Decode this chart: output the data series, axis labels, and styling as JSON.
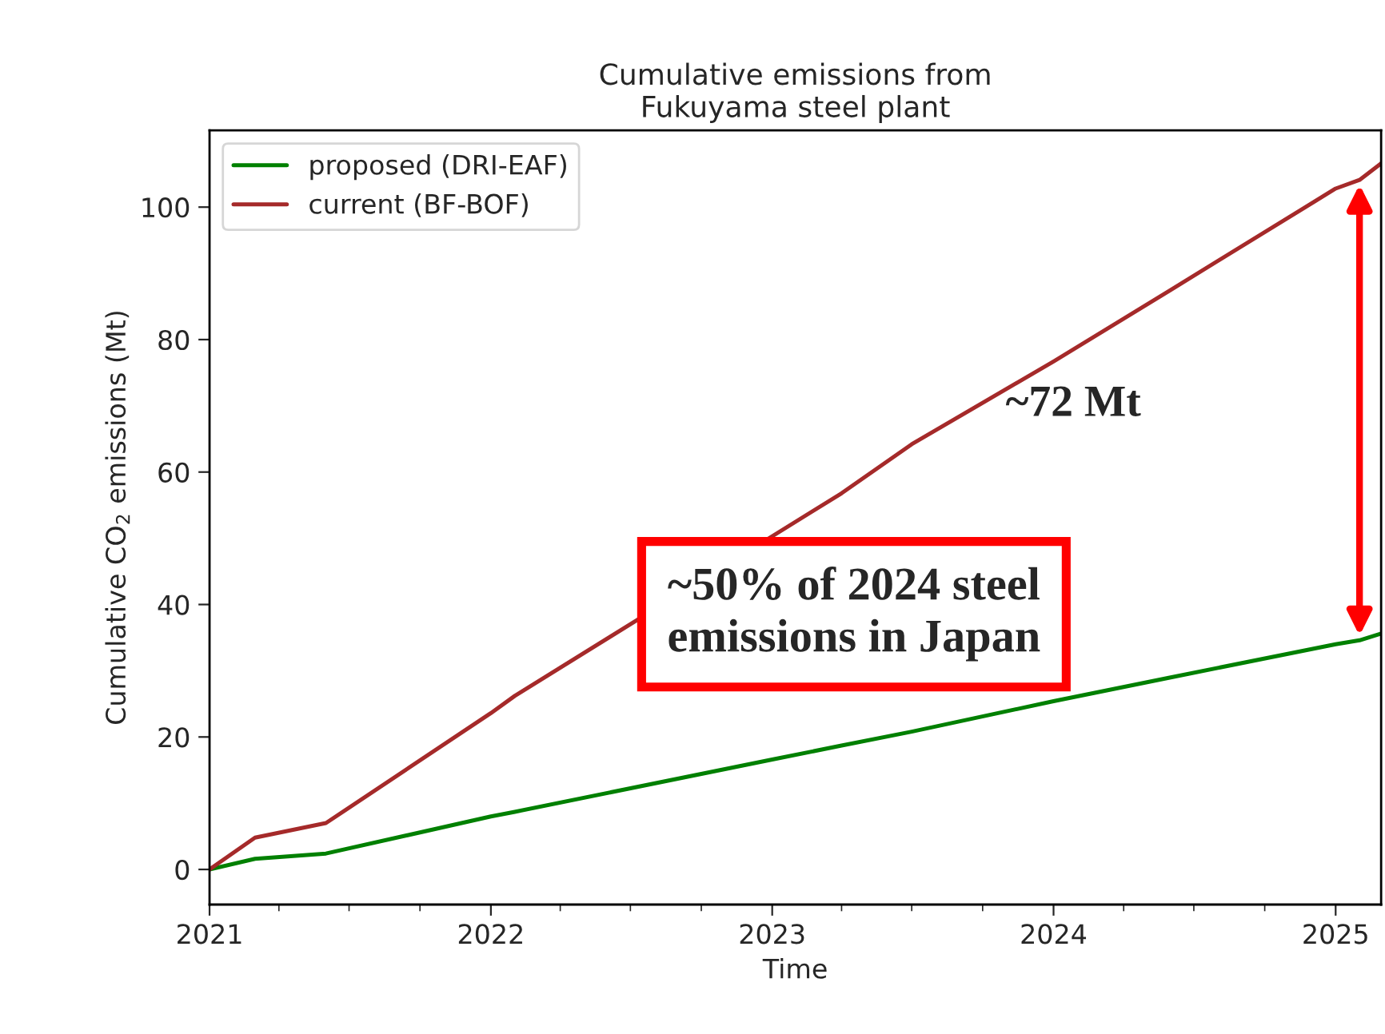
{
  "chart_data": {
    "type": "line",
    "title": "Cumulative emissions from\nFukuyama steel plant",
    "xlabel": "Time",
    "ylabel": "Cumulative CO$_{2}$ emissions (Mt)",
    "x": [
      "2021-01",
      "2021-03",
      "2021-06",
      "2022-01",
      "2022-02",
      "2023-01",
      "2023-04",
      "2023-07",
      "2024-01",
      "2024-06",
      "2025-01",
      "2025-02",
      "2025-03"
    ],
    "series": [
      {
        "name": "proposed (DRI-EAF)",
        "color": "#008000",
        "values": [
          0,
          1.6,
          2.4,
          8.0,
          8.7,
          16.6,
          18.7,
          20.8,
          25.4,
          29.0,
          34.0,
          34.6,
          35.6
        ]
      },
      {
        "name": "current (BF-BOF)",
        "color": "#a52a2a",
        "values": [
          0,
          4.8,
          7.0,
          23.6,
          26.2,
          null,
          56.8,
          64.2,
          76.7,
          87.5,
          102.8,
          104.1,
          106.6
        ]
      }
    ],
    "xlim": [
      "2021-01",
      "2025-03"
    ],
    "xticks": [
      {
        "value": "2021-01",
        "label": "2021"
      },
      {
        "value": "2022-01",
        "label": "2022"
      },
      {
        "value": "2023-01",
        "label": "2023"
      },
      {
        "value": "2024-01",
        "label": "2024"
      },
      {
        "value": "2025-01",
        "label": "2025"
      }
    ],
    "ylim": [
      -5.3,
      111.6
    ],
    "yticks": [
      0,
      20,
      40,
      60,
      80,
      100
    ],
    "grid": false,
    "legend": "top left",
    "marker": "none",
    "line_style": "solid",
    "annotations": [
      "~72 Mt",
      "~50% of 2024 steel emissions in Japan"
    ]
  }
}
